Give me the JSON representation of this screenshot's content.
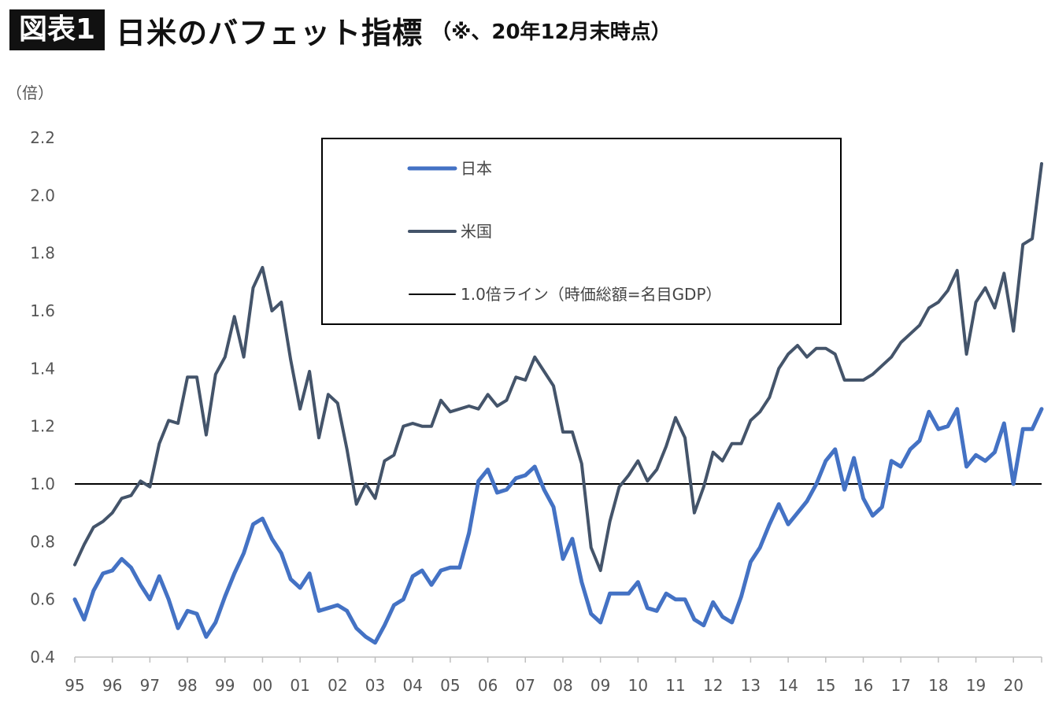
{
  "header": {
    "badge": "図表1",
    "title": "日米のバフェット指標",
    "note": "（※、20年12月末時点）"
  },
  "y_unit": "（倍）",
  "colors": {
    "japan": "#4472c4",
    "usa": "#44546a",
    "ref": "#000000"
  },
  "chart_data": {
    "type": "line",
    "title": "日米のバフェット指標",
    "xlabel": "",
    "ylabel": "（倍）",
    "ylim": [
      0.4,
      2.2
    ],
    "yticks": [
      "0.4",
      "0.6",
      "0.8",
      "1.0",
      "1.2",
      "1.4",
      "1.6",
      "1.8",
      "2.0",
      "2.2"
    ],
    "xticks": [
      "95",
      "96",
      "97",
      "98",
      "99",
      "00",
      "01",
      "02",
      "03",
      "04",
      "05",
      "06",
      "07",
      "08",
      "09",
      "10",
      "11",
      "12",
      "13",
      "14",
      "15",
      "16",
      "17",
      "18",
      "19",
      "20"
    ],
    "x_start_year": 1995,
    "legend_position": "top-center",
    "grid": false,
    "reference_line": {
      "name": "1.0倍ライン（時価総額=名目GDP）",
      "value": 1.0
    },
    "series": [
      {
        "name": "日本",
        "values": [
          0.6,
          0.53,
          0.63,
          0.69,
          0.7,
          0.74,
          0.71,
          0.65,
          0.6,
          0.68,
          0.6,
          0.5,
          0.56,
          0.55,
          0.47,
          0.52,
          0.61,
          0.69,
          0.76,
          0.86,
          0.88,
          0.81,
          0.76,
          0.67,
          0.64,
          0.69,
          0.56,
          0.57,
          0.58,
          0.56,
          0.5,
          0.47,
          0.45,
          0.51,
          0.58,
          0.6,
          0.68,
          0.7,
          0.65,
          0.7,
          0.71,
          0.71,
          0.83,
          1.01,
          1.05,
          0.97,
          0.98,
          1.02,
          1.03,
          1.06,
          0.98,
          0.92,
          0.74,
          0.81,
          0.66,
          0.55,
          0.52,
          0.62,
          0.62,
          0.62,
          0.66,
          0.57,
          0.56,
          0.62,
          0.6,
          0.6,
          0.53,
          0.51,
          0.59,
          0.54,
          0.52,
          0.61,
          0.73,
          0.78,
          0.86,
          0.93,
          0.86,
          0.9,
          0.94,
          1.0,
          1.08,
          1.12,
          0.98,
          1.09,
          0.95,
          0.89,
          0.92,
          1.08,
          1.06,
          1.12,
          1.15,
          1.25,
          1.19,
          1.2,
          1.26,
          1.06,
          1.1,
          1.08,
          1.11,
          1.21,
          1.0,
          1.19,
          1.19,
          1.26
        ]
      },
      {
        "name": "米国",
        "values": [
          0.72,
          0.79,
          0.85,
          0.87,
          0.9,
          0.95,
          0.96,
          1.01,
          0.99,
          1.14,
          1.22,
          1.21,
          1.37,
          1.37,
          1.17,
          1.38,
          1.44,
          1.58,
          1.44,
          1.68,
          1.75,
          1.6,
          1.63,
          1.43,
          1.26,
          1.39,
          1.16,
          1.31,
          1.28,
          1.12,
          0.93,
          1.0,
          0.95,
          1.08,
          1.1,
          1.2,
          1.21,
          1.2,
          1.2,
          1.29,
          1.25,
          1.26,
          1.27,
          1.26,
          1.31,
          1.27,
          1.29,
          1.37,
          1.36,
          1.44,
          1.39,
          1.34,
          1.18,
          1.18,
          1.07,
          0.78,
          0.7,
          0.87,
          0.99,
          1.03,
          1.08,
          1.01,
          1.05,
          1.13,
          1.23,
          1.16,
          0.9,
          0.99,
          1.11,
          1.08,
          1.14,
          1.14,
          1.22,
          1.25,
          1.3,
          1.4,
          1.45,
          1.48,
          1.44,
          1.47,
          1.47,
          1.45,
          1.36,
          1.36,
          1.36,
          1.38,
          1.41,
          1.44,
          1.49,
          1.52,
          1.55,
          1.61,
          1.63,
          1.67,
          1.74,
          1.45,
          1.63,
          1.68,
          1.61,
          1.73,
          1.53,
          1.83,
          1.85,
          2.11
        ]
      }
    ]
  }
}
